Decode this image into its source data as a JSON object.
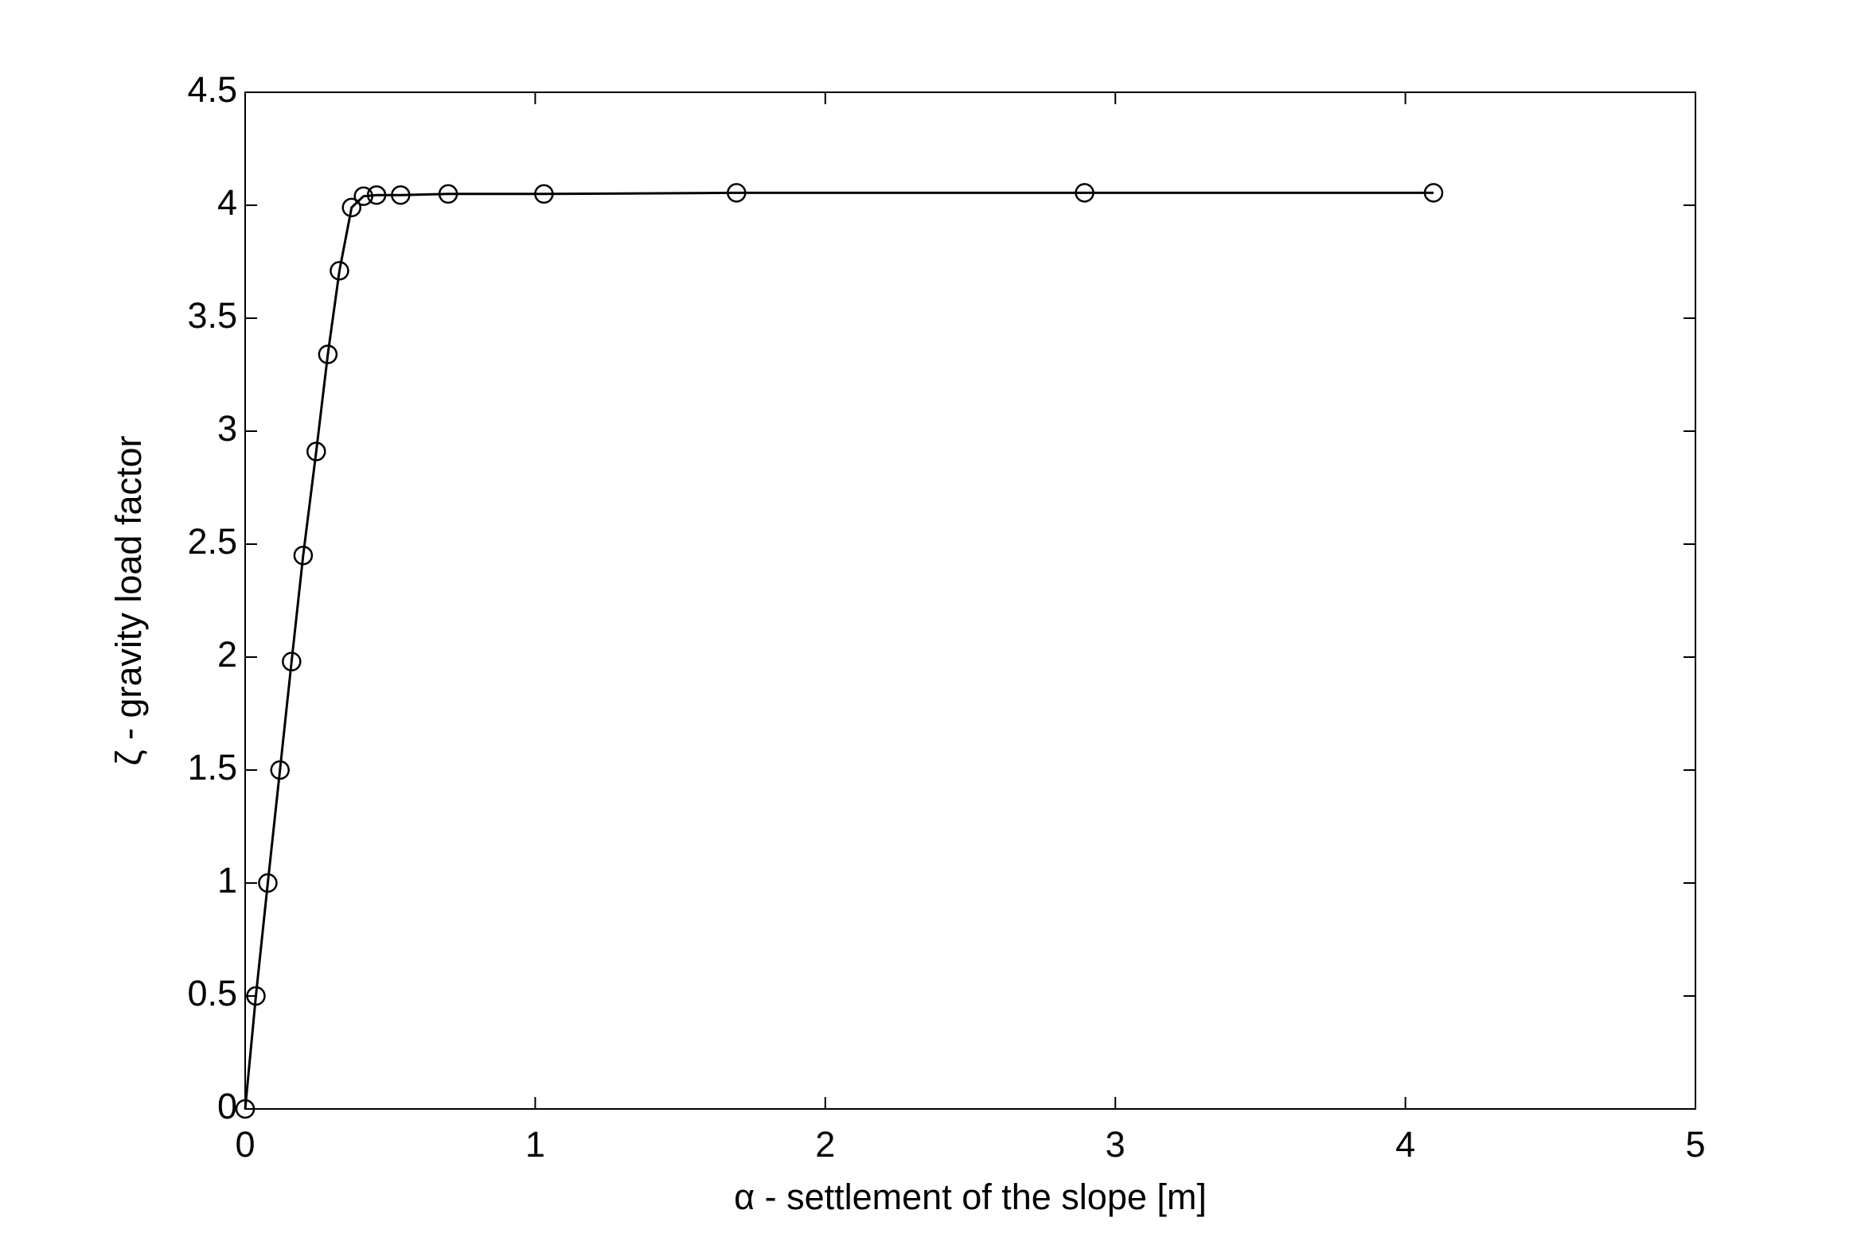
{
  "chart_data": {
    "type": "line",
    "xlabel": "α - settlement of the slope [m]",
    "ylabel": "ζ - gravity load factor",
    "x": [
      0,
      0.037,
      0.078,
      0.12,
      0.16,
      0.2,
      0.245,
      0.285,
      0.325,
      0.367,
      0.408,
      0.453,
      0.536,
      0.7,
      1.03,
      1.694,
      2.894,
      4.097
    ],
    "values": [
      0,
      0.5,
      1.0,
      1.5,
      1.98,
      2.45,
      2.91,
      3.34,
      3.71,
      3.99,
      4.04,
      4.045,
      4.045,
      4.05,
      4.05,
      4.055,
      4.055,
      4.055
    ],
    "color": "#000000",
    "marker": "circle",
    "xlim": [
      0,
      5
    ],
    "xticks": [
      0,
      1,
      2,
      3,
      4,
      5
    ],
    "ylim": [
      0,
      4.5
    ],
    "yticks": [
      0,
      0.5,
      1,
      1.5,
      2,
      2.5,
      3,
      3.5,
      4,
      4.5
    ],
    "grid": false
  }
}
